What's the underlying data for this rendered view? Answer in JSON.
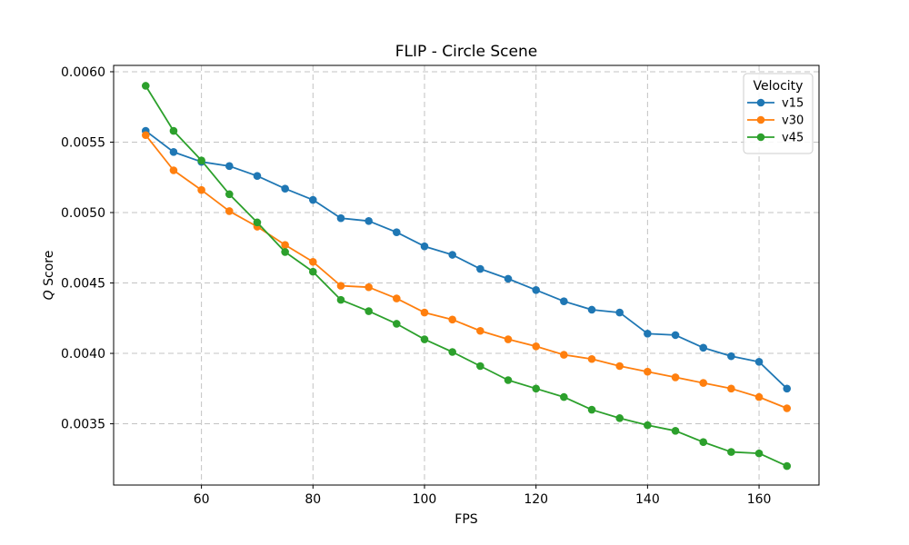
{
  "figure": {
    "background": "#ffffff"
  },
  "chart_data": {
    "type": "line",
    "title": "FLIP - Circle Scene",
    "xlabel": "FPS",
    "ylabel": "Q Score",
    "x": [
      50,
      55,
      60,
      65,
      70,
      75,
      80,
      85,
      90,
      95,
      100,
      105,
      110,
      115,
      120,
      125,
      130,
      135,
      140,
      145,
      150,
      155,
      160,
      165
    ],
    "series": [
      {
        "name": "v15",
        "color": "#1f77b4",
        "values": [
          0.00558,
          0.00543,
          0.00536,
          0.00533,
          0.00526,
          0.00517,
          0.00509,
          0.00496,
          0.00494,
          0.00486,
          0.00476,
          0.0047,
          0.0046,
          0.00453,
          0.00445,
          0.00437,
          0.00431,
          0.00429,
          0.00414,
          0.00413,
          0.00404,
          0.00398,
          0.00394,
          0.00375
        ]
      },
      {
        "name": "v30",
        "color": "#ff7f0e",
        "values": [
          0.00555,
          0.0053,
          0.00516,
          0.00501,
          0.0049,
          0.00477,
          0.00465,
          0.00448,
          0.00447,
          0.00439,
          0.00429,
          0.00424,
          0.00416,
          0.0041,
          0.00405,
          0.00399,
          0.00396,
          0.00391,
          0.00387,
          0.00383,
          0.00379,
          0.00375,
          0.00369,
          0.00361
        ]
      },
      {
        "name": "v45",
        "color": "#2ca02c",
        "values": [
          0.0059,
          0.00558,
          0.00537,
          0.00513,
          0.00493,
          0.00472,
          0.00458,
          0.00438,
          0.0043,
          0.00421,
          0.0041,
          0.00401,
          0.00391,
          0.00381,
          0.00375,
          0.00369,
          0.0036,
          0.00354,
          0.00349,
          0.00345,
          0.00337,
          0.0033,
          0.00329,
          0.0032
        ]
      }
    ],
    "legend": {
      "title": "Velocity",
      "entries": [
        "v15",
        "v30",
        "v45"
      ],
      "position": "upper right"
    },
    "xticks": [
      60,
      80,
      100,
      120,
      140,
      160
    ],
    "yticks": [
      0.0035,
      0.004,
      0.0045,
      0.005,
      0.0055,
      0.006
    ],
    "xlim": [
      44.25,
      170.75
    ],
    "ylim": [
      0.003065,
      0.006045
    ],
    "grid": true,
    "grid_style": "dashed",
    "grid_color": "#c3c3c3",
    "axis_color": "#000000"
  }
}
